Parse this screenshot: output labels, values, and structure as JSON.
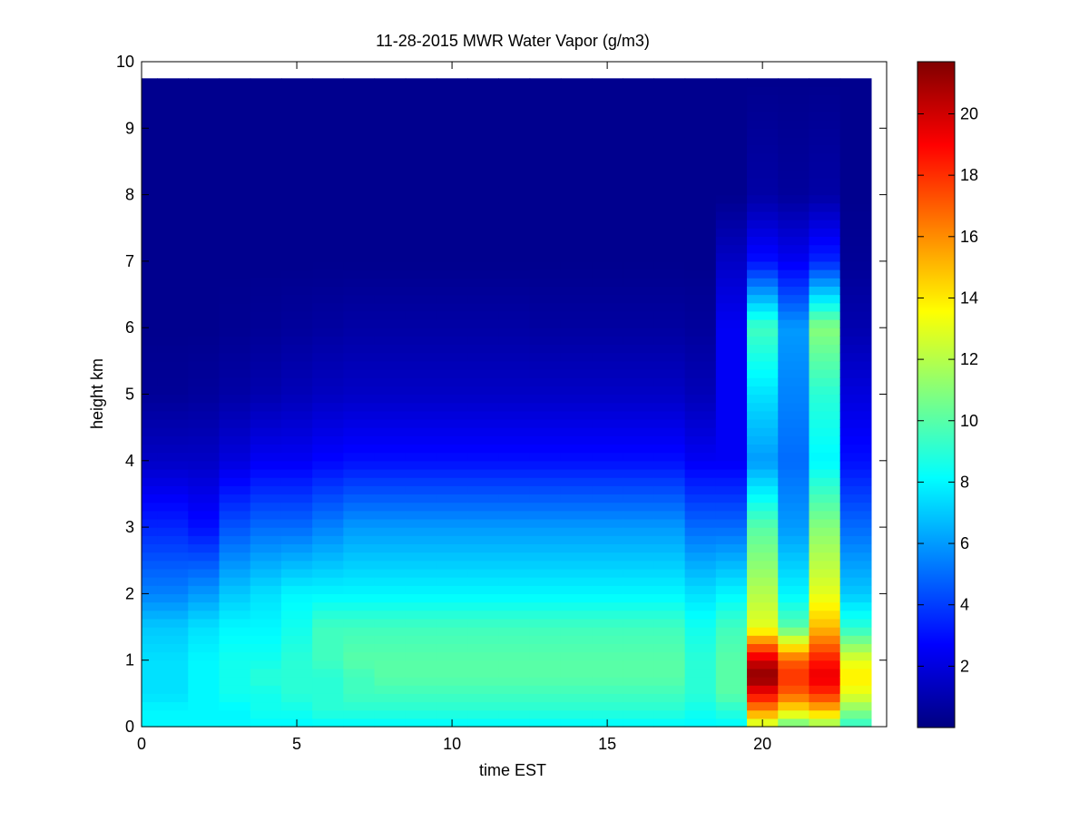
{
  "chart_data": {
    "type": "heatmap",
    "title": "11-28-2015 MWR Water Vapor (g/m3)",
    "xlabel": "time EST",
    "ylabel": "height km",
    "xlim": [
      0,
      24
    ],
    "ylim": [
      0,
      10
    ],
    "xticks": [
      0,
      5,
      10,
      15,
      20
    ],
    "yticks": [
      0,
      1,
      2,
      3,
      4,
      5,
      6,
      7,
      8,
      9,
      10
    ],
    "colormap": "jet",
    "clim": [
      0,
      21.7
    ],
    "colorbar_ticks": [
      2,
      4,
      6,
      8,
      10,
      12,
      14,
      16,
      18,
      20
    ],
    "time_step_hours": 1,
    "times": [
      0,
      1,
      2,
      3,
      4,
      5,
      6,
      7,
      8,
      9,
      10,
      11,
      12,
      13,
      14,
      15,
      16,
      17,
      18,
      19,
      20,
      21,
      22,
      23
    ],
    "height_max_km": 9.75,
    "heights_km": [
      0,
      0.25,
      0.5,
      0.75,
      1,
      1.5,
      2,
      3,
      4,
      5,
      6,
      7,
      8,
      9.75
    ],
    "profiles": [
      [
        8,
        8,
        7.5,
        7.5,
        7.5,
        7,
        5.5,
        3.5,
        1.5,
        0.5,
        0.3,
        0.3,
        0.3,
        0.3
      ],
      [
        8,
        8,
        7.5,
        7.5,
        7.5,
        7,
        5.5,
        3.5,
        1.5,
        0.5,
        0.3,
        0.3,
        0.3,
        0.3
      ],
      [
        8,
        8,
        8,
        8,
        8,
        7.5,
        6,
        3,
        1.5,
        0.6,
        0.3,
        0.3,
        0.3,
        0.3
      ],
      [
        8,
        8,
        8.5,
        8.5,
        8.5,
        8,
        7,
        4.5,
        2,
        0.8,
        0.4,
        0.3,
        0.3,
        0.3
      ],
      [
        8,
        8.5,
        8.5,
        9,
        8.5,
        8,
        7.5,
        5,
        2.5,
        1,
        0.5,
        0.3,
        0.3,
        0.3
      ],
      [
        8,
        8.5,
        9,
        9,
        9,
        8.5,
        8,
        5,
        2.5,
        1.2,
        0.6,
        0.3,
        0.3,
        0.3
      ],
      [
        8,
        9,
        9,
        9,
        9.5,
        9.5,
        8,
        5.5,
        2.8,
        1.4,
        0.7,
        0.3,
        0.3,
        0.3
      ],
      [
        8,
        9,
        9.5,
        9.5,
        10,
        9.5,
        8,
        6,
        3,
        1.5,
        0.8,
        0.3,
        0.3,
        0.3
      ],
      [
        8,
        9,
        9.5,
        10,
        10,
        9.5,
        8,
        6,
        3,
        1.5,
        0.8,
        0.3,
        0.3,
        0.3
      ],
      [
        8,
        9,
        9.5,
        10,
        10,
        9.5,
        8,
        6,
        3,
        1.5,
        0.8,
        0.3,
        0.3,
        0.3
      ],
      [
        8,
        9,
        9.5,
        10,
        10,
        9.5,
        8,
        6,
        3,
        1.5,
        0.8,
        0.3,
        0.3,
        0.3
      ],
      [
        8,
        9,
        9.5,
        10,
        10,
        9.5,
        8,
        6,
        3,
        1.5,
        0.8,
        0.3,
        0.3,
        0.3
      ],
      [
        8,
        9,
        9.5,
        10,
        10,
        9.5,
        8,
        6,
        3,
        1.5,
        0.8,
        0.3,
        0.3,
        0.3
      ],
      [
        8,
        9,
        9.5,
        10,
        10,
        9.5,
        8,
        6,
        3,
        1.5,
        0.7,
        0.3,
        0.3,
        0.3
      ],
      [
        8,
        9,
        9.5,
        10,
        10,
        9.5,
        8,
        6,
        3,
        1.5,
        0.7,
        0.3,
        0.3,
        0.3
      ],
      [
        8,
        9,
        9.5,
        10,
        10,
        9.5,
        8,
        6,
        3,
        1.5,
        0.7,
        0.3,
        0.3,
        0.3
      ],
      [
        8,
        9,
        9.5,
        10,
        10,
        9.5,
        8,
        6,
        3,
        1.5,
        0.7,
        0.3,
        0.3,
        0.3
      ],
      [
        8,
        9,
        9.5,
        10,
        10,
        9.5,
        8,
        6,
        3,
        1.5,
        0.7,
        0.3,
        0.3,
        0.3
      ],
      [
        8,
        8.5,
        9,
        9,
        9,
        8.5,
        7.5,
        5,
        2.5,
        1.2,
        0.6,
        0.3,
        0.3,
        0.3
      ],
      [
        8,
        9,
        10,
        10,
        10,
        9.5,
        8,
        5,
        2.5,
        2.5,
        2.5,
        1.5,
        0.3,
        0.3
      ],
      [
        12,
        16,
        19,
        21.5,
        20,
        13,
        12,
        10,
        6,
        7.5,
        9.5,
        3,
        0.8,
        0.3
      ],
      [
        10,
        14,
        17,
        18,
        17,
        10,
        8,
        6,
        5,
        5.5,
        6,
        2.5,
        0.6,
        0.3
      ],
      [
        11,
        15,
        18,
        19.5,
        18.5,
        15,
        13,
        11,
        8,
        9,
        11,
        3.5,
        0.8,
        0.3
      ],
      [
        9,
        11,
        13,
        14,
        13,
        9,
        7,
        5,
        3,
        2,
        1,
        0.5,
        0.3,
        0.3
      ]
    ]
  }
}
